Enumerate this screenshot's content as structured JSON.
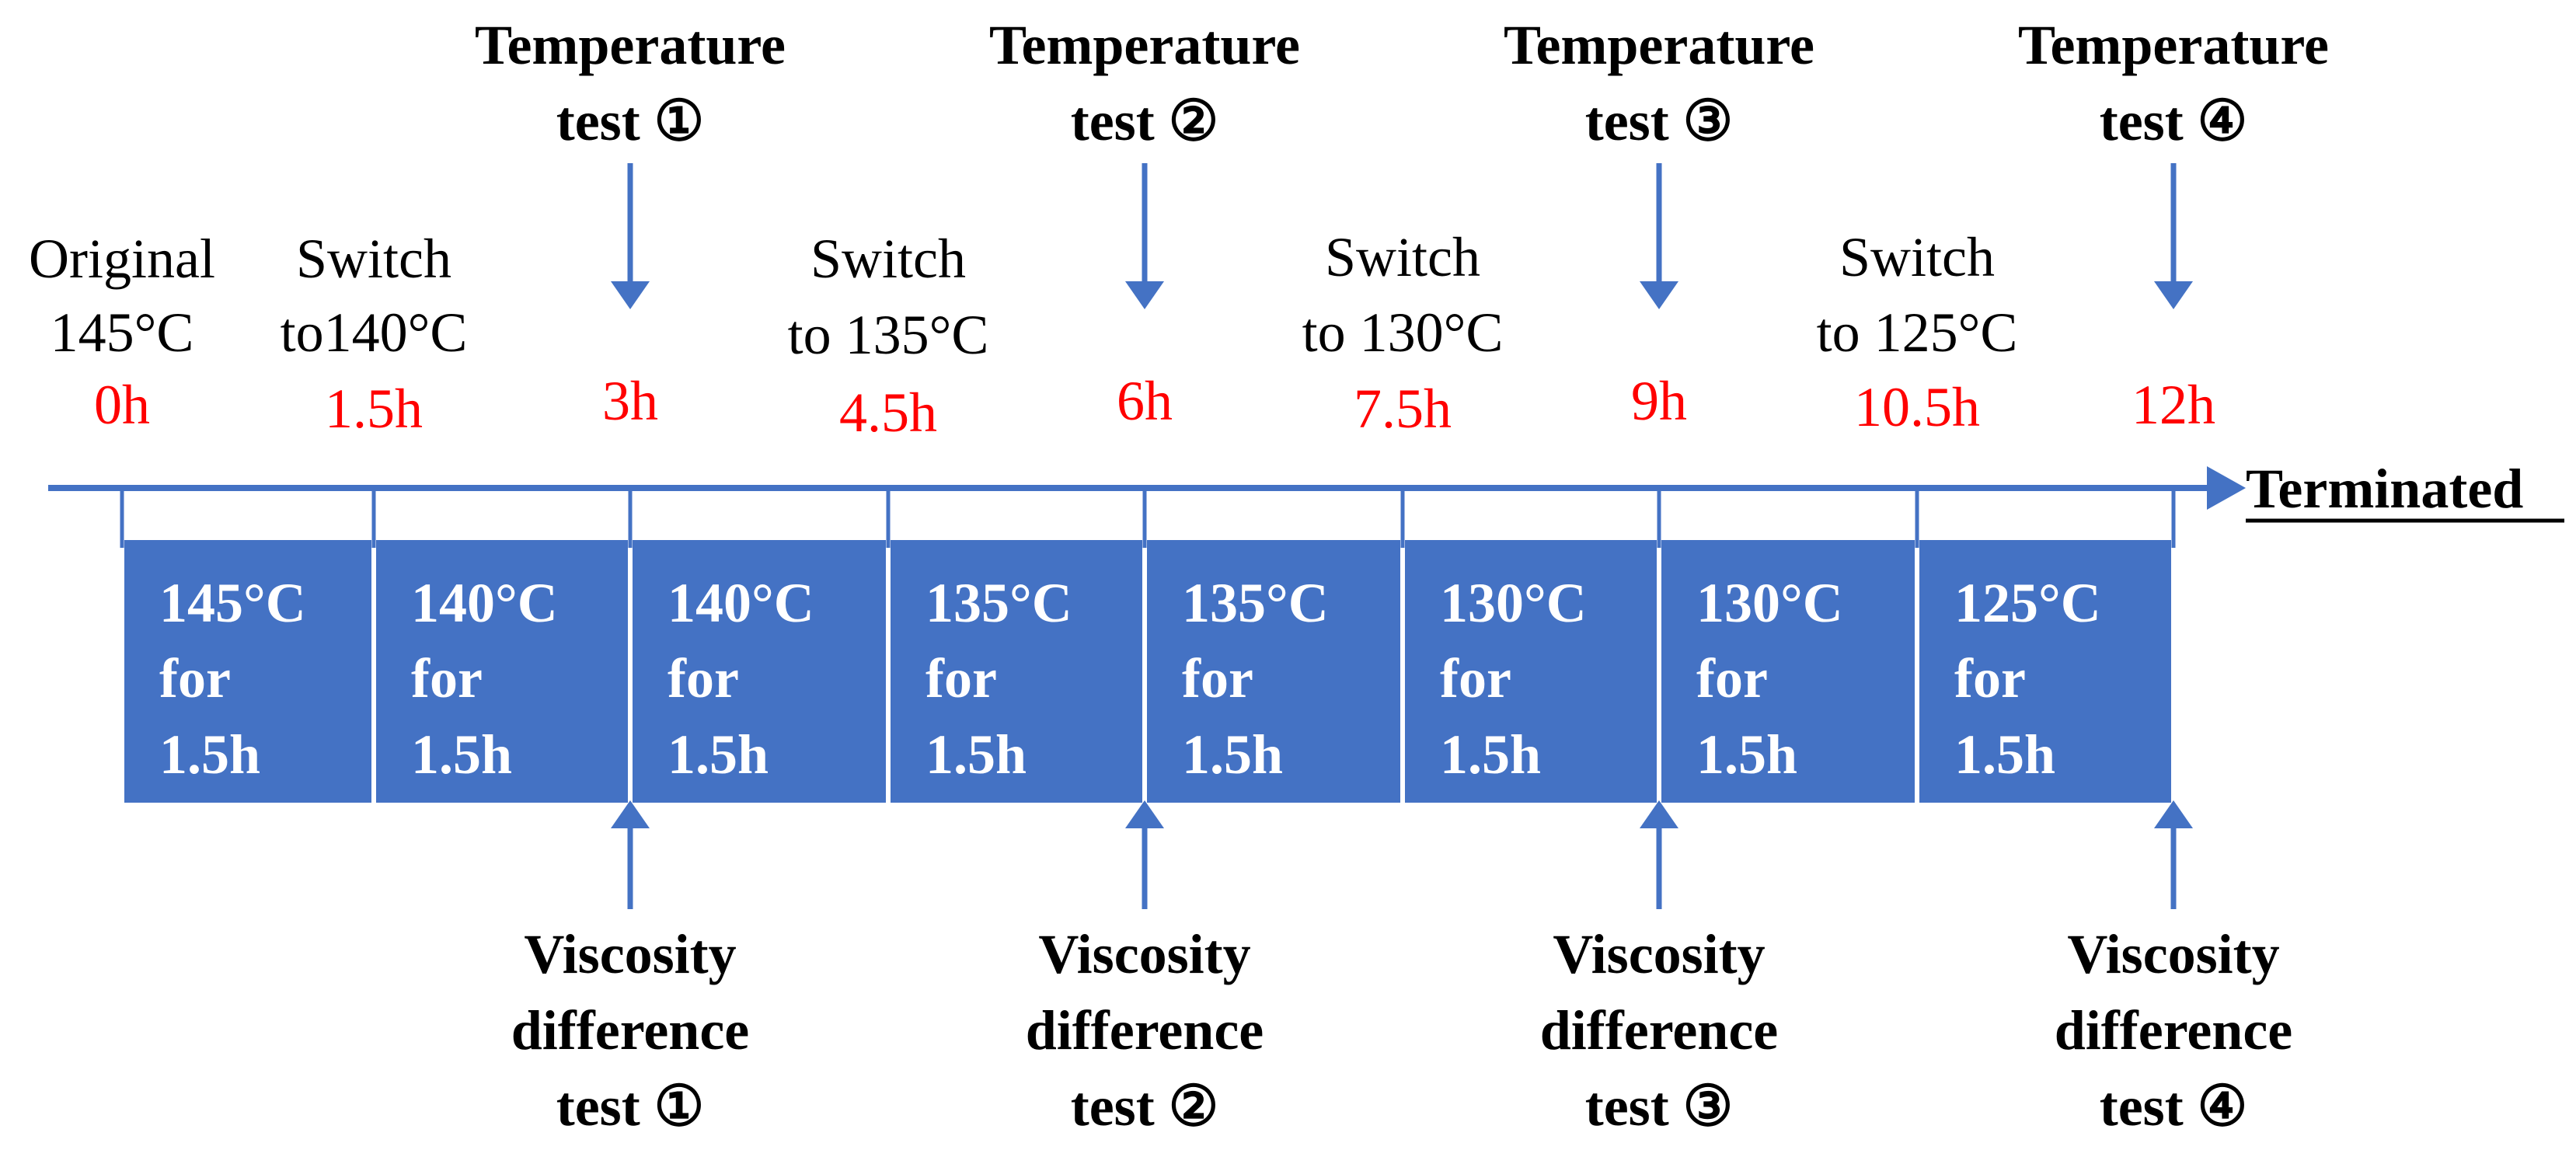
{
  "colors": {
    "blue": "#4472c4",
    "red": "#ff0000",
    "black": "#000000",
    "white": "#ffffff"
  },
  "timeline": {
    "end_label": "Terminated",
    "times": [
      {
        "text": "0h"
      },
      {
        "text": "1.5h"
      },
      {
        "text": "3h"
      },
      {
        "text": "4.5h"
      },
      {
        "text": "6h"
      },
      {
        "text": "7.5h"
      },
      {
        "text": "9h"
      },
      {
        "text": "10.5h"
      },
      {
        "text": "12h"
      }
    ],
    "events": [
      {
        "line1": "Original",
        "line2": "145°C"
      },
      {
        "line1": "Switch",
        "line2": "to140°C"
      },
      {
        "line1": "Switch",
        "line2": "to 135°C"
      },
      {
        "line1": "Switch",
        "line2": "to 130°C"
      },
      {
        "line1": "Switch",
        "line2": "to 125°C"
      }
    ],
    "temperature_tests": [
      {
        "line1": "Temperature",
        "line2": "test ①"
      },
      {
        "line1": "Temperature",
        "line2": "test ②"
      },
      {
        "line1": "Temperature",
        "line2": "test ③"
      },
      {
        "line1": "Temperature",
        "line2": "test ④"
      }
    ],
    "viscosity_tests": [
      {
        "line1": "Viscosity",
        "line2": "difference",
        "line3": "test ①"
      },
      {
        "line1": "Viscosity",
        "line2": "difference",
        "line3": "test ②"
      },
      {
        "line1": "Viscosity",
        "line2": "difference",
        "line3": "test ③"
      },
      {
        "line1": "Viscosity",
        "line2": "difference",
        "line3": "test ④"
      }
    ],
    "segments": [
      {
        "temp": "145°C",
        "for": "for",
        "dur": "1.5h"
      },
      {
        "temp": "140°C",
        "for": "for",
        "dur": "1.5h"
      },
      {
        "temp": "140°C",
        "for": "for",
        "dur": "1.5h"
      },
      {
        "temp": "135°C",
        "for": "for",
        "dur": "1.5h"
      },
      {
        "temp": "135°C",
        "for": "for",
        "dur": "1.5h"
      },
      {
        "temp": "130°C",
        "for": "for",
        "dur": "1.5h"
      },
      {
        "temp": "130°C",
        "for": "for",
        "dur": "1.5h"
      },
      {
        "temp": "125°C",
        "for": "for",
        "dur": "1.5h"
      }
    ]
  }
}
